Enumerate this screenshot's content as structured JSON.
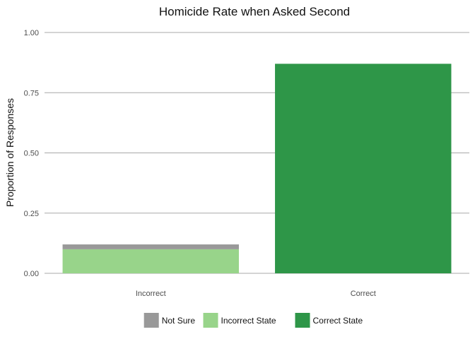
{
  "chart_data": {
    "type": "bar",
    "stacked": true,
    "title": "Homicide Rate when Asked Second",
    "xlabel": "",
    "ylabel": "Proportion of Responses",
    "categories": [
      "Incorrect",
      "Correct"
    ],
    "series": [
      {
        "name": "Not Sure",
        "color": "#999999",
        "values": [
          0.02,
          0
        ]
      },
      {
        "name": "Incorrect State",
        "color": "#98d48a",
        "values": [
          0.1,
          0
        ]
      },
      {
        "name": "Correct State",
        "color": "#2e9648",
        "values": [
          0,
          0.87
        ]
      }
    ],
    "stack_order": [
      "Correct State",
      "Incorrect State",
      "Not Sure"
    ],
    "ylim": [
      0,
      1
    ],
    "yticks": [
      "0.00",
      "0.25",
      "0.50",
      "0.75",
      "1.00"
    ],
    "grid": "horizontal",
    "legend": "bottom"
  }
}
